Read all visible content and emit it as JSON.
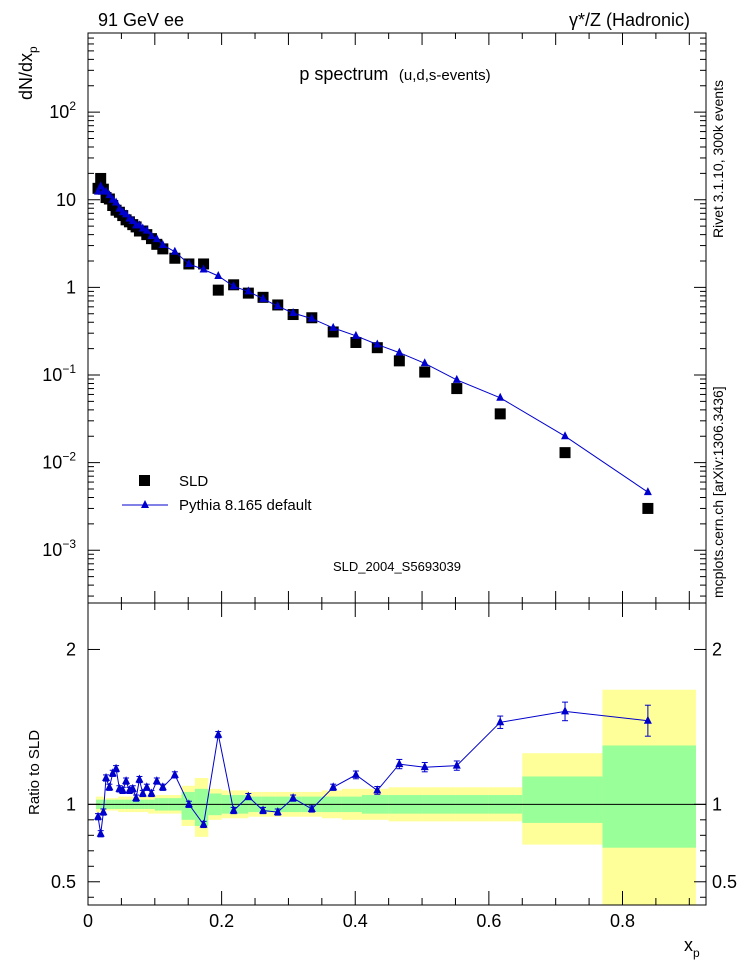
{
  "header": {
    "left": "91 GeV ee",
    "right": "γ*/Z (Hadronic)"
  },
  "side": {
    "rivet": "Rivet 3.1.10,  300k events",
    "mcplots": "mcplots.cern.ch [arXiv:1306.3436]"
  },
  "chart_data": [
    {
      "type": "scatter",
      "title": "p spectrum",
      "subtitle": "(u,d,s-events)",
      "ylabel": "dN/dx",
      "ylabel_sub": "p",
      "yscale": "log",
      "ylim": [
        0.00025,
        800
      ],
      "xlim": [
        0,
        0.925
      ],
      "yticks": [
        {
          "v": 0.001,
          "base": "10",
          "exp": "−3"
        },
        {
          "v": 0.01,
          "base": "10",
          "exp": "−2"
        },
        {
          "v": 0.1,
          "base": "10",
          "exp": "−1"
        },
        {
          "v": 1,
          "base": "1",
          "exp": ""
        },
        {
          "v": 10,
          "base": "10",
          "exp": ""
        },
        {
          "v": 100,
          "base": "10",
          "exp": "2"
        }
      ],
      "watermark": "SLD_2004_S5693039",
      "legend": {
        "position": "bottom-left",
        "entries": [
          "SLD",
          "Pythia 8.165 default"
        ]
      },
      "series": [
        {
          "name": "SLD",
          "marker": "square",
          "color": "#000000",
          "x": [
            0.015,
            0.019,
            0.023,
            0.027,
            0.032,
            0.037,
            0.042,
            0.047,
            0.052,
            0.057,
            0.062,
            0.067,
            0.072,
            0.077,
            0.082,
            0.088,
            0.095,
            0.103,
            0.112,
            0.13,
            0.151,
            0.173,
            0.195,
            0.218,
            0.24,
            0.262,
            0.284,
            0.307,
            0.335,
            0.367,
            0.401,
            0.433,
            0.466,
            0.504,
            0.552,
            0.617,
            0.714,
            0.838
          ],
          "y": [
            13.5,
            17.5,
            13.2,
            10.6,
            10.2,
            8.6,
            7.6,
            7.2,
            6.6,
            5.9,
            5.6,
            5.2,
            4.9,
            4.4,
            4.4,
            4.0,
            3.6,
            3.1,
            2.75,
            2.15,
            1.85,
            1.85,
            0.93,
            1.07,
            0.86,
            0.77,
            0.63,
            0.49,
            0.45,
            0.31,
            0.235,
            0.205,
            0.145,
            0.108,
            0.07,
            0.036,
            0.013,
            0.003
          ]
        },
        {
          "name": "Pythia 8.165 default",
          "marker": "triangle",
          "color": "#0000cc",
          "x": [
            0.015,
            0.019,
            0.023,
            0.027,
            0.032,
            0.037,
            0.042,
            0.047,
            0.052,
            0.057,
            0.062,
            0.067,
            0.072,
            0.077,
            0.082,
            0.088,
            0.095,
            0.103,
            0.112,
            0.13,
            0.151,
            0.173,
            0.195,
            0.218,
            0.24,
            0.262,
            0.284,
            0.307,
            0.335,
            0.367,
            0.401,
            0.433,
            0.466,
            0.504,
            0.552,
            0.617,
            0.714,
            0.838
          ],
          "y": [
            12.4,
            14.2,
            12.6,
            12.4,
            11.3,
            10.0,
            9.3,
            7.9,
            7.2,
            6.8,
            6.1,
            5.7,
            5.1,
            5.1,
            4.7,
            4.45,
            3.85,
            3.55,
            3.05,
            2.55,
            1.85,
            1.6,
            1.35,
            1.03,
            0.9,
            0.74,
            0.61,
            0.51,
            0.44,
            0.345,
            0.28,
            0.223,
            0.18,
            0.136,
            0.088,
            0.055,
            0.02,
            0.0046
          ]
        }
      ]
    },
    {
      "type": "scatter",
      "ylabel": "Ratio to SLD",
      "xlabel": "x",
      "xlabel_sub": "p",
      "ylim": [
        0.35,
        2.3
      ],
      "xlim": [
        0,
        0.925
      ],
      "yticks": [
        0.5,
        1,
        2
      ],
      "xticks": [
        0,
        0.2,
        0.4,
        0.6,
        0.8
      ],
      "reference_line": 1,
      "band_colors": {
        "inner": "#99ff99",
        "outer": "#ffff99"
      },
      "bands": [
        {
          "x0": 0.012,
          "x1": 0.017,
          "inner": [
            0.97,
            1.03
          ],
          "outer": [
            0.95,
            1.05
          ]
        },
        {
          "x0": 0.017,
          "x1": 0.021,
          "inner": [
            0.97,
            1.03
          ],
          "outer": [
            0.95,
            1.05
          ]
        },
        {
          "x0": 0.021,
          "x1": 0.025,
          "inner": [
            0.97,
            1.03
          ],
          "outer": [
            0.95,
            1.05
          ]
        },
        {
          "x0": 0.025,
          "x1": 0.03,
          "inner": [
            0.97,
            1.03
          ],
          "outer": [
            0.96,
            1.04
          ]
        },
        {
          "x0": 0.03,
          "x1": 0.035,
          "inner": [
            0.97,
            1.03
          ],
          "outer": [
            0.96,
            1.04
          ]
        },
        {
          "x0": 0.035,
          "x1": 0.04,
          "inner": [
            0.97,
            1.03
          ],
          "outer": [
            0.96,
            1.04
          ]
        },
        {
          "x0": 0.04,
          "x1": 0.045,
          "inner": [
            0.97,
            1.03
          ],
          "outer": [
            0.96,
            1.04
          ]
        },
        {
          "x0": 0.045,
          "x1": 0.05,
          "inner": [
            0.97,
            1.03
          ],
          "outer": [
            0.95,
            1.05
          ]
        },
        {
          "x0": 0.05,
          "x1": 0.055,
          "inner": [
            0.97,
            1.03
          ],
          "outer": [
            0.95,
            1.05
          ]
        },
        {
          "x0": 0.055,
          "x1": 0.06,
          "inner": [
            0.97,
            1.03
          ],
          "outer": [
            0.95,
            1.05
          ]
        },
        {
          "x0": 0.06,
          "x1": 0.065,
          "inner": [
            0.97,
            1.03
          ],
          "outer": [
            0.95,
            1.05
          ]
        },
        {
          "x0": 0.065,
          "x1": 0.07,
          "inner": [
            0.97,
            1.03
          ],
          "outer": [
            0.95,
            1.05
          ]
        },
        {
          "x0": 0.07,
          "x1": 0.075,
          "inner": [
            0.97,
            1.03
          ],
          "outer": [
            0.95,
            1.05
          ]
        },
        {
          "x0": 0.075,
          "x1": 0.08,
          "inner": [
            0.97,
            1.03
          ],
          "outer": [
            0.95,
            1.05
          ]
        },
        {
          "x0": 0.08,
          "x1": 0.085,
          "inner": [
            0.97,
            1.03
          ],
          "outer": [
            0.95,
            1.05
          ]
        },
        {
          "x0": 0.085,
          "x1": 0.09,
          "inner": [
            0.97,
            1.03
          ],
          "outer": [
            0.95,
            1.05
          ]
        },
        {
          "x0": 0.09,
          "x1": 0.1,
          "inner": [
            0.97,
            1.03
          ],
          "outer": [
            0.94,
            1.06
          ]
        },
        {
          "x0": 0.1,
          "x1": 0.106,
          "inner": [
            0.96,
            1.04
          ],
          "outer": [
            0.94,
            1.06
          ]
        },
        {
          "x0": 0.106,
          "x1": 0.12,
          "inner": [
            0.96,
            1.04
          ],
          "outer": [
            0.94,
            1.06
          ]
        },
        {
          "x0": 0.12,
          "x1": 0.14,
          "inner": [
            0.96,
            1.04
          ],
          "outer": [
            0.94,
            1.06
          ]
        },
        {
          "x0": 0.14,
          "x1": 0.16,
          "inner": [
            0.9,
            1.08
          ],
          "outer": [
            0.86,
            1.12
          ]
        },
        {
          "x0": 0.16,
          "x1": 0.18,
          "inner": [
            0.86,
            1.1
          ],
          "outer": [
            0.79,
            1.17
          ]
        },
        {
          "x0": 0.18,
          "x1": 0.2,
          "inner": [
            0.93,
            1.07
          ],
          "outer": [
            0.9,
            1.1
          ]
        },
        {
          "x0": 0.2,
          "x1": 0.22,
          "inner": [
            0.94,
            1.06
          ],
          "outer": [
            0.91,
            1.09
          ]
        },
        {
          "x0": 0.22,
          "x1": 0.24,
          "inner": [
            0.94,
            1.06
          ],
          "outer": [
            0.91,
            1.09
          ]
        },
        {
          "x0": 0.24,
          "x1": 0.26,
          "inner": [
            0.95,
            1.05
          ],
          "outer": [
            0.92,
            1.08
          ]
        },
        {
          "x0": 0.26,
          "x1": 0.28,
          "inner": [
            0.95,
            1.05
          ],
          "outer": [
            0.92,
            1.08
          ]
        },
        {
          "x0": 0.28,
          "x1": 0.3,
          "inner": [
            0.95,
            1.05
          ],
          "outer": [
            0.92,
            1.08
          ]
        },
        {
          "x0": 0.3,
          "x1": 0.32,
          "inner": [
            0.95,
            1.05
          ],
          "outer": [
            0.92,
            1.08
          ]
        },
        {
          "x0": 0.32,
          "x1": 0.35,
          "inner": [
            0.95,
            1.05
          ],
          "outer": [
            0.92,
            1.08
          ]
        },
        {
          "x0": 0.35,
          "x1": 0.38,
          "inner": [
            0.95,
            1.05
          ],
          "outer": [
            0.91,
            1.09
          ]
        },
        {
          "x0": 0.38,
          "x1": 0.41,
          "inner": [
            0.95,
            1.05
          ],
          "outer": [
            0.9,
            1.1
          ]
        },
        {
          "x0": 0.41,
          "x1": 0.45,
          "inner": [
            0.94,
            1.06
          ],
          "outer": [
            0.9,
            1.1
          ]
        },
        {
          "x0": 0.45,
          "x1": 0.5,
          "inner": [
            0.94,
            1.06
          ],
          "outer": [
            0.89,
            1.11
          ]
        },
        {
          "x0": 0.5,
          "x1": 0.55,
          "inner": [
            0.94,
            1.06
          ],
          "outer": [
            0.89,
            1.11
          ]
        },
        {
          "x0": 0.55,
          "x1": 0.6,
          "inner": [
            0.94,
            1.06
          ],
          "outer": [
            0.89,
            1.11
          ]
        },
        {
          "x0": 0.6,
          "x1": 0.65,
          "inner": [
            0.94,
            1.06
          ],
          "outer": [
            0.89,
            1.11
          ]
        },
        {
          "x0": 0.65,
          "x1": 0.77,
          "inner": [
            0.88,
            1.18
          ],
          "outer": [
            0.74,
            1.33
          ]
        },
        {
          "x0": 0.77,
          "x1": 0.91,
          "inner": [
            0.72,
            1.38
          ],
          "outer": [
            0.35,
            1.74
          ]
        }
      ],
      "series": [
        {
          "name": "Pythia 8.165 default",
          "marker": "triangle",
          "color": "#0000cc",
          "x": [
            0.015,
            0.019,
            0.023,
            0.027,
            0.032,
            0.037,
            0.042,
            0.047,
            0.052,
            0.057,
            0.062,
            0.067,
            0.072,
            0.077,
            0.082,
            0.088,
            0.095,
            0.103,
            0.112,
            0.13,
            0.151,
            0.173,
            0.195,
            0.218,
            0.24,
            0.262,
            0.284,
            0.307,
            0.335,
            0.367,
            0.401,
            0.433,
            0.466,
            0.504,
            0.552,
            0.617,
            0.714,
            0.838
          ],
          "y": [
            0.92,
            0.81,
            0.95,
            1.17,
            1.11,
            1.2,
            1.23,
            1.1,
            1.09,
            1.15,
            1.09,
            1.1,
            1.04,
            1.16,
            1.07,
            1.11,
            1.07,
            1.15,
            1.11,
            1.19,
            1.0,
            0.87,
            1.45,
            0.96,
            1.05,
            0.96,
            0.95,
            1.04,
            0.97,
            1.11,
            1.19,
            1.09,
            1.26,
            1.24,
            1.25,
            1.53,
            1.6,
            1.54
          ],
          "err": [
            0.02,
            0.02,
            0.02,
            0.02,
            0.02,
            0.02,
            0.02,
            0.02,
            0.02,
            0.02,
            0.02,
            0.02,
            0.02,
            0.02,
            0.02,
            0.02,
            0.02,
            0.02,
            0.02,
            0.02,
            0.02,
            0.02,
            0.02,
            0.02,
            0.02,
            0.02,
            0.02,
            0.02,
            0.02,
            0.02,
            0.025,
            0.025,
            0.03,
            0.03,
            0.03,
            0.04,
            0.06,
            0.1
          ]
        }
      ]
    }
  ]
}
